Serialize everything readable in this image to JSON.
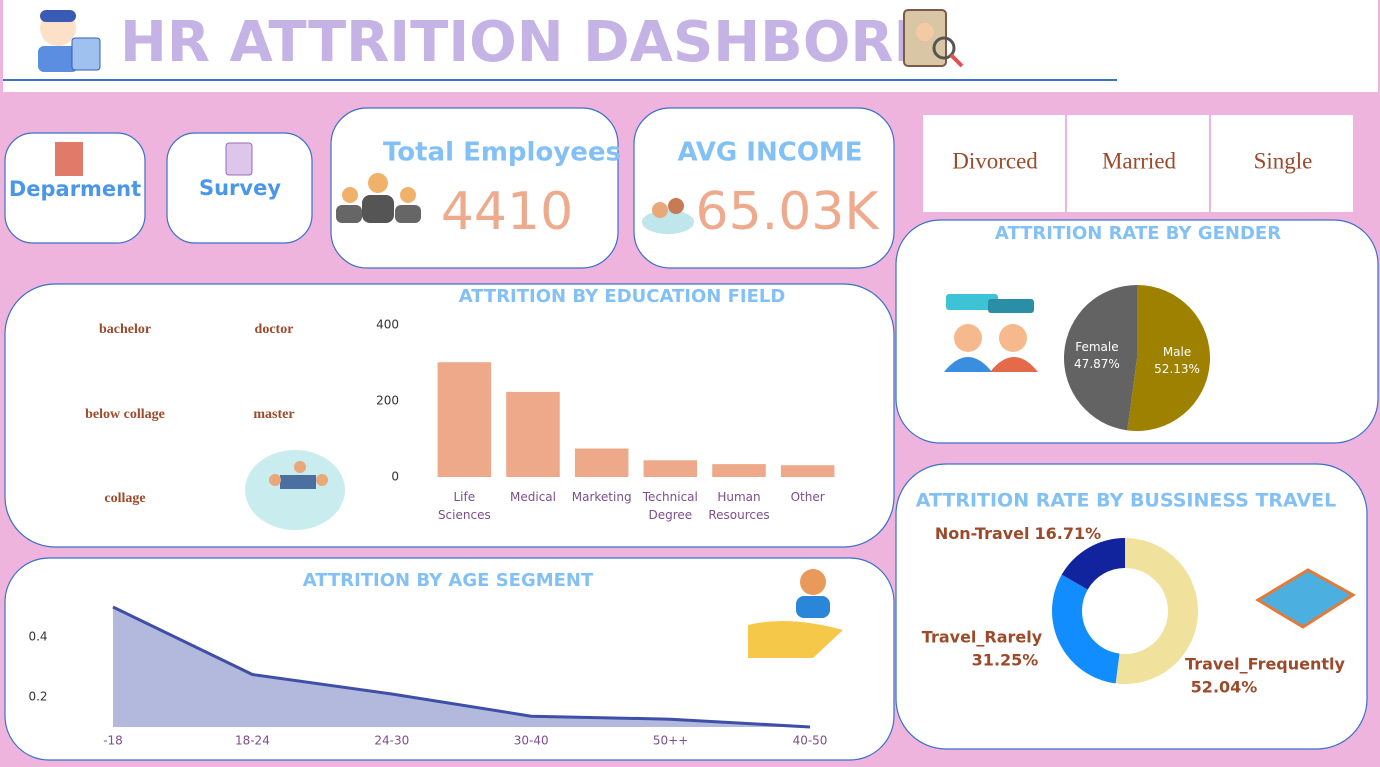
{
  "header": {
    "title": "HR ATTRITION DASHBORD"
  },
  "buttons": [
    "Deparment",
    "Survey"
  ],
  "kpis": [
    {
      "label": "Total Employees",
      "value": 4410
    },
    {
      "label": "AVG INCOME",
      "value": "65.03K"
    }
  ],
  "marital_status": [
    "Divorced",
    "Married",
    "Single"
  ],
  "education_levels": [
    "bachelor",
    "doctor",
    "below collage",
    "master",
    "collage"
  ],
  "chart_data": [
    {
      "type": "bar",
      "title": "ATTRITION BY EDUCATION FIELD",
      "categories": [
        "Life Sciences",
        "Medical",
        "Marketing",
        "Technical Degree",
        "Human Resources",
        "Other"
      ],
      "values": [
        302,
        224,
        75,
        44,
        34,
        31
      ],
      "color": "#eea98a",
      "ylim": [
        0,
        400
      ],
      "yticks": [
        0,
        200,
        400
      ]
    },
    {
      "type": "pie",
      "title": "ATTRITION RATE BY GENDER",
      "categories": [
        "Female",
        "Male"
      ],
      "values": [
        47.87,
        52.13
      ],
      "value_labels": [
        "47.87%",
        "52.13%"
      ],
      "colors": [
        "#636363",
        "#9f8100"
      ]
    },
    {
      "type": "area",
      "title": "ATTRITION BY AGE SEGMENT",
      "categories": [
        "-18",
        "18-24",
        "24-30",
        "30-40",
        "50++",
        "40-50"
      ],
      "values": [
        0.5,
        0.275,
        0.21,
        0.136,
        0.126,
        0.1
      ],
      "color": "#3f4fa8",
      "ylim": [
        0.1,
        0.52
      ],
      "yticks": [
        0.2,
        0.4
      ]
    },
    {
      "type": "donut",
      "title": "ATTRITION RATE BY BUSSINESS TRAVEL",
      "categories": [
        "Non-Travel",
        "Travel_Rarely",
        "Travel_Frequently"
      ],
      "values": [
        16.71,
        31.25,
        52.04
      ],
      "value_labels": [
        "16.71%",
        "31.25%",
        "52.04%"
      ],
      "colors": [
        "#12239e",
        "#118dff",
        "#f0e19d"
      ]
    }
  ]
}
